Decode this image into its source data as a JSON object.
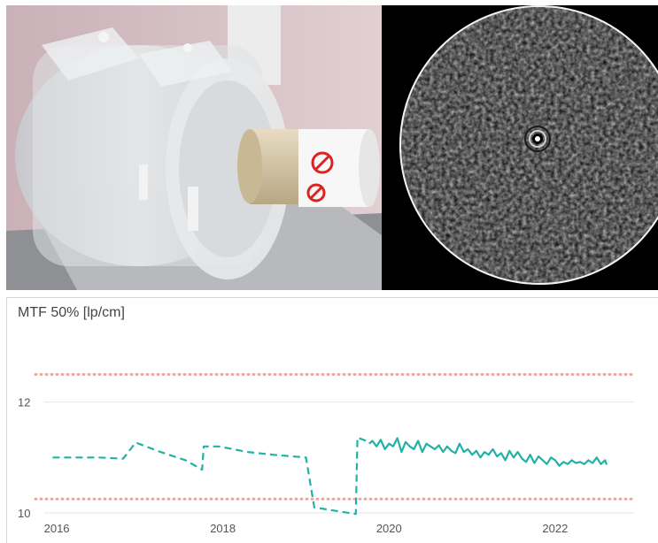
{
  "chart_data": {
    "type": "line",
    "title": "MTF 50% [lp/cm]",
    "xlabel": "",
    "ylabel": "",
    "xlim": [
      2015.85,
      2022.95
    ],
    "ylim": [
      9.6,
      13.4
    ],
    "yticks": [
      10,
      12
    ],
    "ytick_labels": [
      "10",
      "12"
    ],
    "xticks": [
      2016,
      2018,
      2020,
      2022
    ],
    "xtick_labels": [
      "2016",
      "2018",
      "2020",
      "2022"
    ],
    "grid": "horizontal",
    "colors": {
      "series": "#20b2a6",
      "limits": "#f4a39a",
      "grid": "#e6e6e6"
    },
    "limits": [
      {
        "y": 12.5,
        "style": "dotted"
      },
      {
        "y": 10.25,
        "style": "dotted"
      }
    ],
    "series": [
      {
        "style": "dashed",
        "x": [
          2015.95,
          2016.2,
          2016.5,
          2016.8,
          2016.95,
          2017.25,
          2017.55,
          2017.75,
          2017.77,
          2017.95,
          2018.3,
          2018.6,
          2019.0,
          2019.1,
          2019.3,
          2019.6,
          2019.62,
          2019.76
        ],
        "y": [
          11.0,
          11.0,
          11.0,
          10.98,
          11.27,
          11.1,
          10.95,
          10.78,
          11.2,
          11.2,
          11.1,
          11.05,
          11.0,
          10.1,
          10.05,
          9.98,
          11.36,
          11.28
        ]
      },
      {
        "style": "solid",
        "x": [
          2019.76,
          2019.8,
          2019.85,
          2019.9,
          2019.95,
          2020.0,
          2020.05,
          2020.1,
          2020.15,
          2020.2,
          2020.25,
          2020.3,
          2020.35,
          2020.4,
          2020.45,
          2020.5,
          2020.55,
          2020.6,
          2020.65,
          2020.7,
          2020.75,
          2020.8,
          2020.85,
          2020.9,
          2020.95,
          2021.0,
          2021.05,
          2021.1,
          2021.15,
          2021.2,
          2021.25,
          2021.3,
          2021.35,
          2021.4,
          2021.45,
          2021.5,
          2021.55,
          2021.6,
          2021.65,
          2021.7,
          2021.75,
          2021.8,
          2021.85,
          2021.9,
          2021.95,
          2022.0,
          2022.05,
          2022.1,
          2022.15,
          2022.2,
          2022.25,
          2022.3,
          2022.35,
          2022.4,
          2022.45,
          2022.5,
          2022.55,
          2022.6,
          2022.62
        ],
        "y": [
          11.25,
          11.3,
          11.2,
          11.32,
          11.15,
          11.25,
          11.2,
          11.35,
          11.1,
          11.28,
          11.2,
          11.15,
          11.3,
          11.1,
          11.25,
          11.2,
          11.15,
          11.22,
          11.1,
          11.2,
          11.12,
          11.08,
          11.25,
          11.1,
          11.15,
          11.05,
          11.12,
          11.0,
          11.1,
          11.05,
          11.15,
          11.02,
          11.08,
          10.95,
          11.12,
          11.0,
          11.1,
          10.98,
          10.92,
          11.05,
          10.9,
          11.02,
          10.95,
          10.88,
          11.0,
          10.95,
          10.85,
          10.92,
          10.88,
          10.95,
          10.9,
          10.92,
          10.88,
          10.95,
          10.9,
          11.0,
          10.88,
          10.95,
          10.87
        ]
      }
    ]
  }
}
